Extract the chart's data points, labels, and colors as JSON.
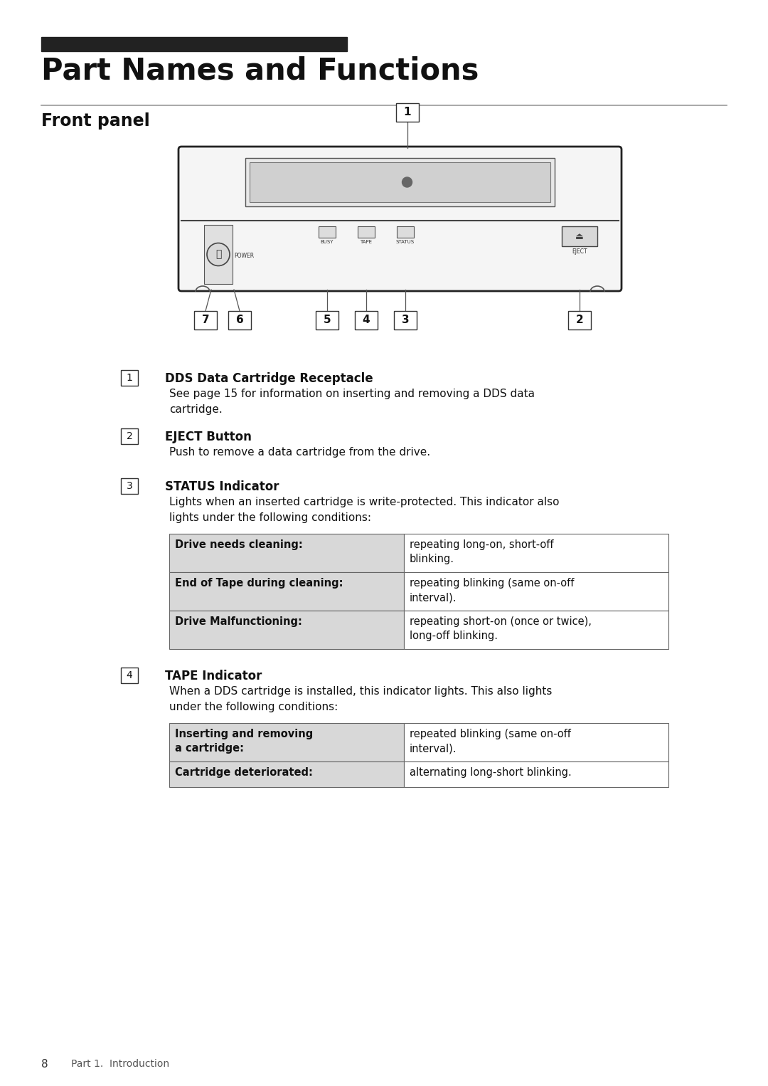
{
  "bg_color": "#ffffff",
  "title_bar_color": "#222222",
  "title_text": "Part Names and Functions",
  "section_title": "Front panel",
  "table1_rows": [
    [
      "Drive needs cleaning:",
      "repeating long-on, short-off\nblinking."
    ],
    [
      "End of Tape during cleaning:",
      "repeating blinking (same on-off\ninterval)."
    ],
    [
      "Drive Malfunctioning:",
      "repeating short-on (once or twice),\nlong-off blinking."
    ]
  ],
  "table2_rows": [
    [
      "Inserting and removing\na cartridge:",
      "repeated blinking (same on-off\ninterval)."
    ],
    [
      "Cartridge deteriorated:",
      "alternating long-short blinking."
    ]
  ],
  "footer_text": "8",
  "footer_right": "Part 1.  Introduction"
}
